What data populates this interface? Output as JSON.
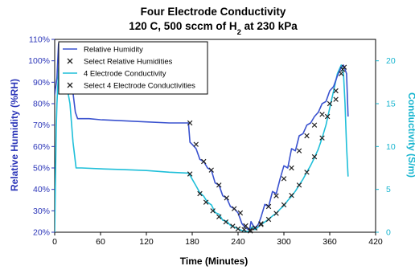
{
  "chart_data": {
    "type": "line",
    "title": "Four Electrode Conductivity",
    "subtitle_parts": [
      "120 C, 500 sccm of H",
      "2",
      " at 230 kPa"
    ],
    "xlabel": "Time (Minutes)",
    "ylabel_left": "Relative Humidity (%RH)",
    "ylabel_right": "Conductivity (S/m)",
    "xlim": [
      0,
      420
    ],
    "xticks": [
      "0",
      "60",
      "120",
      "180",
      "240",
      "300",
      "360",
      "420"
    ],
    "ylim_left": [
      20,
      110
    ],
    "yticks_left": [
      "20%",
      "30%",
      "40%",
      "50%",
      "60%",
      "70%",
      "80%",
      "90%",
      "100%",
      "110%"
    ],
    "ylim_right": [
      0,
      22.5
    ],
    "yticks_right": [
      "0",
      "5",
      "10",
      "15",
      "20"
    ],
    "colors": {
      "rh": "#3a52cf",
      "cond": "#1fbfd9",
      "left_axis": "#2b35b8",
      "right_axis": "#17b5cf",
      "marker": "#222222"
    },
    "legend": {
      "position": "top-left",
      "entries": [
        "Relative Humidity",
        "Select Relative Humidities",
        "4 Electrode Conductivity",
        "Select 4 Electrode Conductivities"
      ]
    },
    "series": [
      {
        "name": "Relative Humidity",
        "axis": "left",
        "x": [
          0,
          3,
          5,
          7,
          10,
          14,
          18,
          21,
          24,
          27,
          30,
          45,
          60,
          90,
          120,
          150,
          170,
          175,
          177,
          180,
          185,
          190,
          195,
          200,
          205,
          210,
          215,
          220,
          225,
          230,
          235,
          240,
          245,
          250,
          255,
          257,
          260,
          263,
          267,
          270,
          275,
          280,
          285,
          290,
          295,
          300,
          305,
          310,
          315,
          320,
          325,
          330,
          335,
          340,
          345,
          350,
          355,
          360,
          365,
          370,
          375,
          378,
          380,
          382,
          384
        ],
        "y": [
          84,
          92,
          108,
          103,
          108,
          95,
          90,
          88,
          85,
          76,
          73,
          73,
          72.5,
          72,
          71.5,
          71,
          71,
          71,
          62,
          61,
          59,
          54,
          53,
          50,
          49,
          43,
          42,
          37,
          36,
          32,
          31,
          29,
          24,
          22,
          21,
          25,
          23,
          22,
          24,
          27,
          33,
          32,
          39,
          38,
          45,
          51,
          50,
          59,
          58,
          65,
          66,
          70,
          71,
          74,
          76,
          80,
          81,
          86,
          88,
          93,
          97,
          98,
          96,
          94,
          74
        ]
      },
      {
        "name": "Select Relative Humidities",
        "axis": "left",
        "x": [
          177,
          185,
          195,
          205,
          215,
          225,
          235,
          243,
          250,
          256,
          262,
          270,
          280,
          290,
          300,
          310,
          320,
          330,
          340,
          350,
          360,
          368,
          375,
          379
        ],
        "y": [
          71,
          61,
          53,
          49,
          42,
          36,
          31,
          29,
          23,
          21,
          22,
          24,
          32,
          37,
          45,
          50,
          58,
          65,
          70,
          75,
          80,
          86,
          94,
          97
        ]
      },
      {
        "name": "4 Electrode Conductivity",
        "axis": "right",
        "x": [
          0,
          2,
          3,
          5,
          8,
          10,
          13,
          16,
          20,
          24,
          28,
          35,
          60,
          90,
          120,
          150,
          175,
          178,
          185,
          190,
          195,
          200,
          205,
          210,
          215,
          220,
          225,
          230,
          235,
          240,
          245,
          250,
          255,
          258,
          262,
          265,
          270,
          275,
          280,
          285,
          290,
          295,
          300,
          305,
          310,
          315,
          320,
          325,
          330,
          335,
          340,
          345,
          350,
          355,
          360,
          365,
          370,
          375,
          378,
          380,
          382,
          384
        ],
        "y": [
          0,
          12,
          15,
          19,
          22,
          21,
          18,
          17,
          15,
          10.5,
          7.5,
          7.5,
          7.4,
          7.3,
          7.2,
          7.0,
          6.9,
          6.5,
          5.4,
          4.6,
          4.2,
          3.5,
          3.2,
          2.3,
          2.1,
          1.4,
          1.3,
          0.8,
          0.6,
          0.4,
          0.2,
          0.1,
          0.1,
          0.6,
          0.3,
          0.5,
          0.9,
          1.2,
          1.5,
          1.9,
          2.2,
          2.7,
          3.1,
          3.7,
          4.2,
          4.8,
          5.5,
          6.2,
          7.0,
          7.8,
          8.7,
          9.7,
          11,
          12.5,
          14.5,
          16.5,
          18.5,
          19.5,
          18.5,
          15,
          10,
          6.5
        ]
      },
      {
        "name": "Select 4 Electrode Conductivities",
        "axis": "right",
        "x": [
          177,
          190,
          198,
          207,
          215,
          224,
          233,
          240,
          248,
          256,
          262,
          270,
          280,
          290,
          300,
          310,
          320,
          330,
          340,
          350,
          357,
          368,
          377
        ],
        "y": [
          6.8,
          4.5,
          3.5,
          2.5,
          1.8,
          1.2,
          0.7,
          0.4,
          0.3,
          0.15,
          0.5,
          0.9,
          1.5,
          2.2,
          3.2,
          4.3,
          5.5,
          7.0,
          8.8,
          11.0,
          13.5,
          15.5,
          19.0
        ]
      }
    ]
  }
}
